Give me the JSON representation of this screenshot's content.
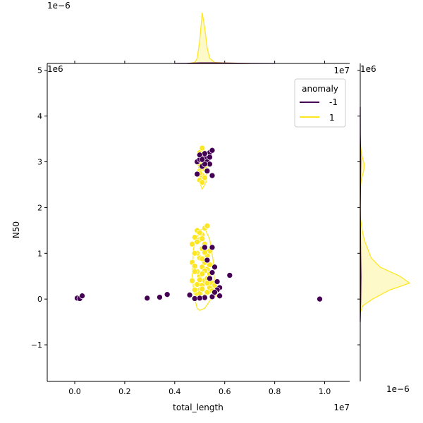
{
  "chart_data": {
    "type": "scatter",
    "subtype": "jointplot",
    "xlabel": "total_length",
    "ylabel": "N50",
    "x_scale_label": "1e7",
    "y_scale_label": "1e6",
    "top_marginal_scale_label": "1e−6",
    "right_marginal_scale_label": "1e−6",
    "xlim": [
      -0.11,
      1.1
    ],
    "ylim": [
      -1.8,
      5.15
    ],
    "x_ticks": [
      0.0,
      0.2,
      0.4,
      0.6,
      0.8,
      1.0
    ],
    "x_tick_labels": [
      "0.0",
      "0.2",
      "0.4",
      "0.6",
      "0.8",
      "1.0"
    ],
    "y_ticks": [
      -1,
      0,
      1,
      2,
      3,
      4,
      5
    ],
    "y_tick_labels": [
      "−1",
      "0",
      "1",
      "2",
      "3",
      "4",
      "5"
    ],
    "grid": false,
    "legend": {
      "title": "anomaly",
      "placement": "top-right",
      "entries": [
        {
          "label": "-1",
          "color": "#440154"
        },
        {
          "label": "1",
          "color": "#fde725"
        }
      ]
    },
    "series": [
      {
        "name": "-1",
        "color": "#440154",
        "points": [
          [
            0.01,
            0.02
          ],
          [
            0.02,
            0.01
          ],
          [
            0.03,
            0.07
          ],
          [
            0.29,
            0.02
          ],
          [
            0.34,
            0.04
          ],
          [
            0.37,
            0.1
          ],
          [
            0.46,
            0.09
          ],
          [
            0.48,
            0.01
          ],
          [
            0.98,
            0.0
          ],
          [
            0.62,
            0.52
          ],
          [
            0.58,
            0.07
          ],
          [
            0.58,
            0.25
          ],
          [
            0.57,
            0.38
          ],
          [
            0.55,
            0.05
          ],
          [
            0.53,
            0.85
          ],
          [
            0.55,
            1.13
          ],
          [
            0.52,
            1.13
          ],
          [
            0.57,
            0.2
          ],
          [
            0.52,
            0.03
          ],
          [
            0.55,
            0.58
          ],
          [
            0.56,
            0.7
          ],
          [
            0.54,
            0.45
          ],
          [
            0.56,
            0.15
          ],
          [
            0.5,
            0.02
          ],
          [
            0.49,
            3.0
          ],
          [
            0.5,
            3.05
          ],
          [
            0.52,
            3.1
          ],
          [
            0.54,
            3.2
          ],
          [
            0.55,
            3.25
          ],
          [
            0.53,
            3.0
          ],
          [
            0.54,
            2.95
          ],
          [
            0.51,
            2.9
          ],
          [
            0.49,
            2.73
          ],
          [
            0.53,
            2.8
          ],
          [
            0.54,
            3.1
          ],
          [
            0.52,
            3.18
          ],
          [
            0.5,
            3.15
          ],
          [
            0.52,
            2.95
          ],
          [
            0.55,
            2.7
          ],
          [
            0.51,
            3.05
          ]
        ]
      },
      {
        "name": "1",
        "color": "#fde725",
        "points": [
          [
            0.49,
            0.1
          ],
          [
            0.5,
            0.2
          ],
          [
            0.51,
            0.3
          ],
          [
            0.52,
            0.4
          ],
          [
            0.5,
            0.5
          ],
          [
            0.49,
            0.6
          ],
          [
            0.51,
            0.7
          ],
          [
            0.52,
            0.8
          ],
          [
            0.5,
            0.9
          ],
          [
            0.49,
            1.0
          ],
          [
            0.51,
            1.1
          ],
          [
            0.52,
            1.2
          ],
          [
            0.5,
            1.3
          ],
          [
            0.51,
            1.4
          ],
          [
            0.49,
            1.5
          ],
          [
            0.52,
            1.55
          ],
          [
            0.53,
            1.6
          ],
          [
            0.48,
            1.35
          ],
          [
            0.47,
            1.2
          ],
          [
            0.48,
            1.0
          ],
          [
            0.47,
            0.8
          ],
          [
            0.48,
            0.6
          ],
          [
            0.47,
            0.4
          ],
          [
            0.48,
            0.2
          ],
          [
            0.53,
            0.15
          ],
          [
            0.54,
            0.25
          ],
          [
            0.53,
            0.45
          ],
          [
            0.54,
            0.55
          ],
          [
            0.55,
            0.35
          ],
          [
            0.56,
            0.3
          ],
          [
            0.53,
            0.65
          ],
          [
            0.54,
            0.75
          ],
          [
            0.53,
            0.95
          ],
          [
            0.54,
            1.05
          ],
          [
            0.52,
            0.05
          ],
          [
            0.5,
            0.12
          ],
          [
            0.51,
            0.22
          ],
          [
            0.49,
            0.32
          ],
          [
            0.5,
            0.42
          ],
          [
            0.52,
            0.62
          ],
          [
            0.51,
            0.88
          ],
          [
            0.49,
            1.25
          ],
          [
            0.5,
            1.45
          ],
          [
            0.51,
            0.55
          ],
          [
            0.53,
            0.35
          ],
          [
            0.55,
            0.18
          ],
          [
            0.56,
            0.1
          ],
          [
            0.48,
            0.72
          ],
          [
            0.52,
            1.02
          ],
          [
            0.51,
            1.32
          ],
          [
            0.5,
            2.6
          ],
          [
            0.51,
            2.7
          ],
          [
            0.5,
            2.8
          ],
          [
            0.51,
            2.9
          ],
          [
            0.52,
            3.0
          ],
          [
            0.51,
            3.1
          ],
          [
            0.5,
            3.2
          ],
          [
            0.51,
            3.3
          ],
          [
            0.52,
            2.65
          ],
          [
            0.5,
            2.95
          ],
          [
            0.51,
            3.05
          ],
          [
            0.52,
            2.85
          ],
          [
            0.5,
            2.75
          ],
          [
            0.51,
            2.55
          ],
          [
            0.52,
            3.15
          ]
        ]
      }
    ],
    "x_marginal_kde": {
      "yellow": [
        [
          0.45,
          0.0
        ],
        [
          0.48,
          0.02
        ],
        [
          0.49,
          0.1
        ],
        [
          0.5,
          0.45
        ],
        [
          0.51,
          1.0
        ],
        [
          0.52,
          0.7
        ],
        [
          0.53,
          0.3
        ],
        [
          0.54,
          0.1
        ],
        [
          0.56,
          0.02
        ],
        [
          0.6,
          0.01
        ],
        [
          0.7,
          0.0
        ]
      ],
      "purple": [
        [
          0.4,
          0.0
        ],
        [
          0.45,
          0.003
        ],
        [
          0.5,
          0.012
        ],
        [
          0.55,
          0.012
        ],
        [
          0.6,
          0.008
        ],
        [
          0.7,
          0.002
        ],
        [
          0.8,
          0.0
        ]
      ]
    },
    "y_marginal_kde": {
      "yellow": [
        [
          -0.3,
          0.0
        ],
        [
          -0.15,
          0.05
        ],
        [
          0.0,
          0.25
        ],
        [
          0.2,
          0.6
        ],
        [
          0.35,
          1.0
        ],
        [
          0.5,
          0.8
        ],
        [
          0.7,
          0.4
        ],
        [
          0.9,
          0.22
        ],
        [
          1.1,
          0.15
        ],
        [
          1.3,
          0.08
        ],
        [
          1.5,
          0.04
        ],
        [
          1.8,
          0.0
        ],
        [
          2.4,
          0.0
        ],
        [
          2.6,
          0.02
        ],
        [
          2.8,
          0.07
        ],
        [
          2.95,
          0.08
        ],
        [
          3.15,
          0.03
        ],
        [
          3.4,
          0.0
        ]
      ],
      "purple": [
        [
          -0.5,
          0.0
        ],
        [
          0.0,
          0.01
        ],
        [
          0.5,
          0.015
        ],
        [
          1.0,
          0.008
        ],
        [
          2.0,
          0.002
        ],
        [
          3.0,
          0.01
        ],
        [
          3.6,
          0.002
        ],
        [
          4.2,
          0.0
        ]
      ]
    },
    "yellow_contours": [
      [
        [
          0.5,
          -0.25
        ],
        [
          0.52,
          -0.2
        ],
        [
          0.545,
          0.0
        ],
        [
          0.56,
          0.3
        ],
        [
          0.555,
          0.8
        ],
        [
          0.54,
          1.3
        ],
        [
          0.52,
          1.55
        ],
        [
          0.5,
          1.5
        ],
        [
          0.475,
          1.1
        ],
        [
          0.47,
          0.5
        ],
        [
          0.48,
          0.0
        ],
        [
          0.49,
          -0.2
        ],
        [
          0.5,
          -0.25
        ]
      ],
      [
        [
          0.51,
          2.4
        ],
        [
          0.525,
          2.55
        ],
        [
          0.53,
          2.9
        ],
        [
          0.52,
          3.25
        ],
        [
          0.505,
          3.25
        ],
        [
          0.495,
          2.9
        ],
        [
          0.5,
          2.55
        ],
        [
          0.51,
          2.4
        ]
      ]
    ]
  }
}
